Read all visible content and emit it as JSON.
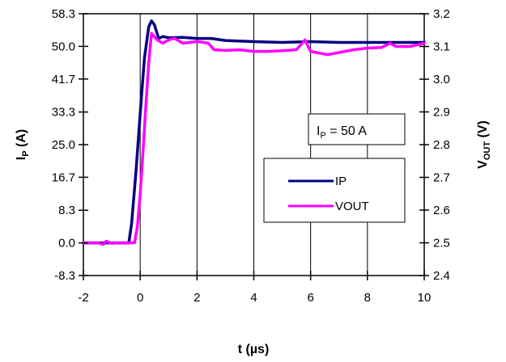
{
  "chart_data": {
    "type": "line",
    "xlabel": "t (µs)",
    "ylabel_left_main": "I",
    "ylabel_left_sub": "P",
    "ylabel_left_unit": " (A)",
    "ylabel_right_main": "V",
    "ylabel_right_sub": "OUT",
    "ylabel_right_unit": " (V)",
    "xlim": [
      -2,
      10
    ],
    "ylim_left": [
      -8.3,
      58.3
    ],
    "ylim_right": [
      2.4,
      3.2
    ],
    "x_ticks": [
      "-2",
      "0",
      "2",
      "4",
      "6",
      "8",
      "10"
    ],
    "x_tick_values": [
      -2,
      0,
      2,
      4,
      6,
      8,
      10
    ],
    "y_left_ticks": [
      "58.3",
      "50.0",
      "41.7",
      "33.3",
      "25.0",
      "16.7",
      "8.3",
      "0.0",
      "-8.3"
    ],
    "y_left_tick_values": [
      58.3,
      50.0,
      41.7,
      33.3,
      25.0,
      16.7,
      8.3,
      0.0,
      -8.3
    ],
    "y_right_ticks": [
      "3.2",
      "3.1",
      "3.0",
      "2.9",
      "2.8",
      "2.7",
      "2.6",
      "2.5",
      "2.4"
    ],
    "y_right_tick_values": [
      3.2,
      3.1,
      3.0,
      2.9,
      2.8,
      2.7,
      2.6,
      2.5,
      2.4
    ],
    "grid": "vertical",
    "legend": {
      "placement": "center-right"
    },
    "annotation": {
      "main": "I",
      "sub": "P",
      "rest": " = 50 A"
    },
    "series": [
      {
        "name": "IP",
        "axis": "left",
        "color": "#000080",
        "x": [
          -2,
          -0.4,
          -0.3,
          -0.15,
          0,
          0.15,
          0.3,
          0.4,
          0.5,
          0.65,
          0.8,
          1.0,
          1.5,
          2.0,
          2.5,
          3.0,
          4.0,
          5.0,
          6.0,
          7.0,
          8.0,
          9.0,
          10.0
        ],
        "values": [
          0,
          0,
          5,
          18,
          33,
          47,
          55,
          56.5,
          55.5,
          52,
          52.5,
          52.2,
          52.3,
          52,
          52,
          51.5,
          51.2,
          51,
          51.2,
          51,
          51,
          51,
          51
        ]
      },
      {
        "name": "VOUT",
        "axis": "right",
        "color": "#ff00ff",
        "x": [
          -2,
          -1.5,
          -1.3,
          -1.2,
          -1.0,
          -0.8,
          -0.5,
          -0.2,
          -0.1,
          0,
          0.1,
          0.2,
          0.3,
          0.4,
          0.5,
          0.6,
          0.8,
          1.0,
          1.2,
          1.5,
          2.0,
          2.4,
          2.6,
          3.0,
          3.5,
          4.0,
          4.5,
          5.0,
          5.5,
          5.8,
          6.0,
          6.3,
          6.6,
          6.9,
          7.2,
          7.5,
          8.0,
          8.5,
          8.8,
          9.0,
          9.5,
          10.0
        ],
        "values": [
          2.5,
          2.5,
          2.495,
          2.505,
          2.498,
          2.5,
          2.5,
          2.5,
          2.55,
          2.65,
          2.78,
          2.92,
          3.05,
          3.14,
          3.13,
          3.12,
          3.11,
          3.12,
          3.125,
          3.11,
          3.115,
          3.11,
          3.09,
          3.088,
          3.09,
          3.085,
          3.085,
          3.087,
          3.09,
          3.12,
          3.085,
          3.08,
          3.075,
          3.08,
          3.085,
          3.09,
          3.095,
          3.097,
          3.11,
          3.1,
          3.1,
          3.11
        ]
      }
    ]
  }
}
